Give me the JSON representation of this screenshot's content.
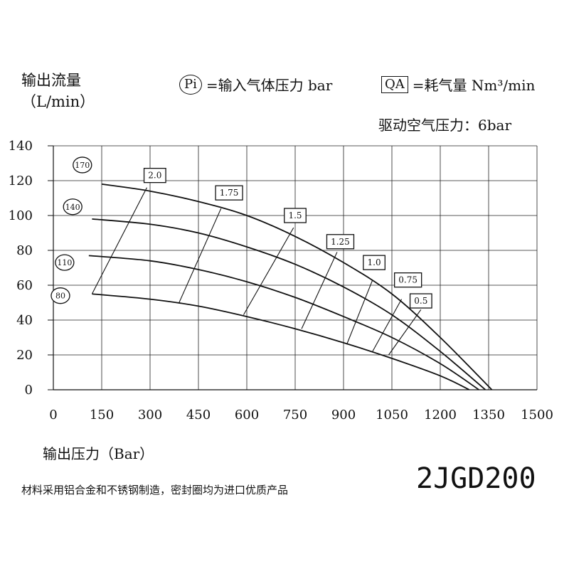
{
  "header": {
    "ylabel_line1": "输出流量",
    "ylabel_line2": "（L/min）",
    "legend_pi_mark": "Pi",
    "legend_pi_text": "=输入气体压力 bar",
    "legend_qa_mark": "QA",
    "legend_qa_text": "=耗气量 Nm³/min",
    "drive_pressure": "驱动空气压力：6bar"
  },
  "footer": {
    "xlabel": "输出压力（Bar）",
    "note": "材料采用铝合金和不锈钢制造，密封圈均为进口优质产品",
    "model": "2JGD200"
  },
  "chart_data": {
    "type": "line",
    "xlabel": "输出压力（Bar）",
    "ylabel": "输出流量（L/min）",
    "xlim": [
      0,
      1500
    ],
    "ylim": [
      0,
      140
    ],
    "x_ticks": [
      "0",
      "150",
      "300",
      "450",
      "600",
      "750",
      "900",
      "1050",
      "1200",
      "1350",
      "1500"
    ],
    "y_ticks": [
      "0",
      "20",
      "40",
      "60",
      "80",
      "100",
      "120",
      "140"
    ],
    "grid": true,
    "series": [
      {
        "name": "170",
        "points": [
          [
            150,
            118
          ],
          [
            300,
            114
          ],
          [
            450,
            108
          ],
          [
            600,
            100
          ],
          [
            750,
            88
          ],
          [
            900,
            73
          ],
          [
            1050,
            55
          ],
          [
            1200,
            30
          ],
          [
            1360,
            0
          ]
        ]
      },
      {
        "name": "140",
        "points": [
          [
            120,
            98
          ],
          [
            300,
            95
          ],
          [
            450,
            90
          ],
          [
            600,
            82
          ],
          [
            750,
            72
          ],
          [
            900,
            59
          ],
          [
            1050,
            43
          ],
          [
            1200,
            22
          ],
          [
            1340,
            0
          ]
        ]
      },
      {
        "name": "110",
        "points": [
          [
            110,
            77
          ],
          [
            300,
            74
          ],
          [
            450,
            69
          ],
          [
            600,
            62
          ],
          [
            750,
            53
          ],
          [
            900,
            42
          ],
          [
            1050,
            30
          ],
          [
            1200,
            15
          ],
          [
            1320,
            0
          ]
        ]
      },
      {
        "name": "80",
        "points": [
          [
            120,
            55
          ],
          [
            300,
            52
          ],
          [
            450,
            48
          ],
          [
            600,
            42
          ],
          [
            750,
            35
          ],
          [
            900,
            27
          ],
          [
            1050,
            18
          ],
          [
            1200,
            8
          ],
          [
            1290,
            0
          ]
        ]
      }
    ],
    "qa_lines": [
      {
        "label": "2.0",
        "points": [
          [
            120,
            55
          ],
          [
            290,
            116
          ]
        ]
      },
      {
        "label": "1.75",
        "points": [
          [
            390,
            50
          ],
          [
            520,
            104
          ]
        ]
      },
      {
        "label": "1.5",
        "points": [
          [
            590,
            43
          ],
          [
            745,
            93
          ]
        ]
      },
      {
        "label": "1.25",
        "points": [
          [
            770,
            35
          ],
          [
            880,
            79
          ]
        ]
      },
      {
        "label": "1.0",
        "points": [
          [
            910,
            26
          ],
          [
            990,
            63
          ]
        ]
      },
      {
        "label": "0.75",
        "points": [
          [
            990,
            22
          ],
          [
            1080,
            52
          ]
        ]
      },
      {
        "label": "0.5",
        "points": [
          [
            1040,
            20
          ],
          [
            1140,
            46
          ]
        ]
      }
    ],
    "qa_labels": [
      {
        "text": "2.0",
        "x": 315,
        "y": 123
      },
      {
        "text": "1.75",
        "x": 545,
        "y": 113
      },
      {
        "text": "1.5",
        "x": 750,
        "y": 100
      },
      {
        "text": "1.25",
        "x": 890,
        "y": 85
      },
      {
        "text": "1.0",
        "x": 995,
        "y": 73
      },
      {
        "text": "0.75",
        "x": 1100,
        "y": 63
      },
      {
        "text": "0.5",
        "x": 1140,
        "y": 51
      }
    ],
    "pi_labels": [
      {
        "text": "170",
        "x": 90,
        "y": 129
      },
      {
        "text": "140",
        "x": 60,
        "y": 105
      },
      {
        "text": "110",
        "x": 35,
        "y": 73
      },
      {
        "text": "80",
        "x": 22,
        "y": 54
      }
    ]
  }
}
